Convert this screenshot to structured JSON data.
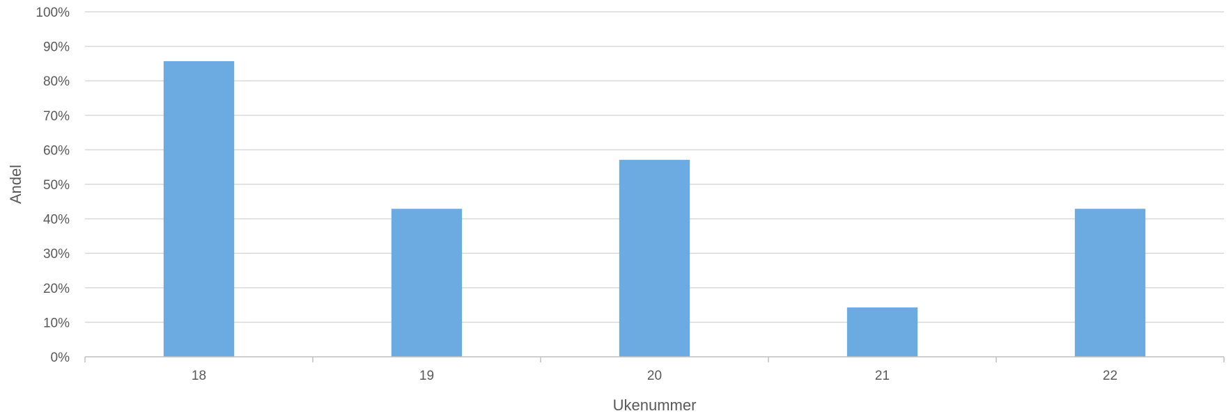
{
  "chart_data": {
    "type": "bar",
    "title": "",
    "xlabel": "Ukenummer",
    "ylabel": "Andel",
    "categories": [
      "18",
      "19",
      "20",
      "21",
      "22"
    ],
    "values": [
      0.857,
      0.429,
      0.571,
      0.143,
      0.429
    ],
    "ylim": [
      0,
      1
    ],
    "yticks": [
      0,
      0.1,
      0.2,
      0.3,
      0.4,
      0.5,
      0.6,
      0.7,
      0.8,
      0.9,
      1.0
    ],
    "ytick_labels": [
      "0%",
      "10%",
      "20%",
      "30%",
      "40%",
      "50%",
      "60%",
      "70%",
      "80%",
      "90%",
      "100%"
    ],
    "grid": true,
    "legend": "none",
    "colors": {
      "bar": "#6CABE1",
      "grid": "#D9D9D9",
      "axis": "#BFBFBF",
      "text": "#595959"
    }
  }
}
